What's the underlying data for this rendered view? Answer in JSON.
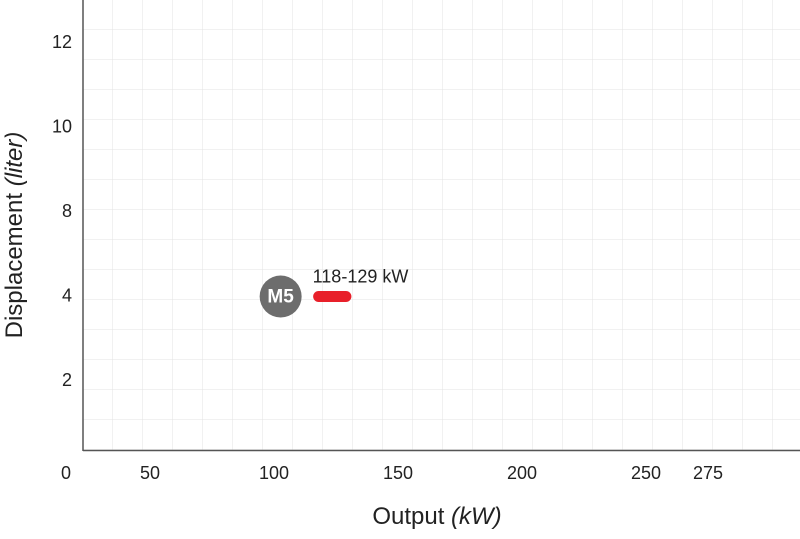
{
  "chart_data": {
    "type": "range",
    "x_label": "Output",
    "x_unit": "(kW)",
    "y_label": "Displacement",
    "y_unit": "(liter)",
    "xticks": [
      0,
      50,
      100,
      150,
      200,
      250,
      275
    ],
    "yticks": [
      2,
      4,
      8,
      10,
      12
    ],
    "grid": true,
    "series": [
      {
        "name": "M5",
        "color": "#e8202a",
        "x_start": 118,
        "x_end": 129,
        "y": 4,
        "value_label": "118-129 kW"
      }
    ]
  }
}
